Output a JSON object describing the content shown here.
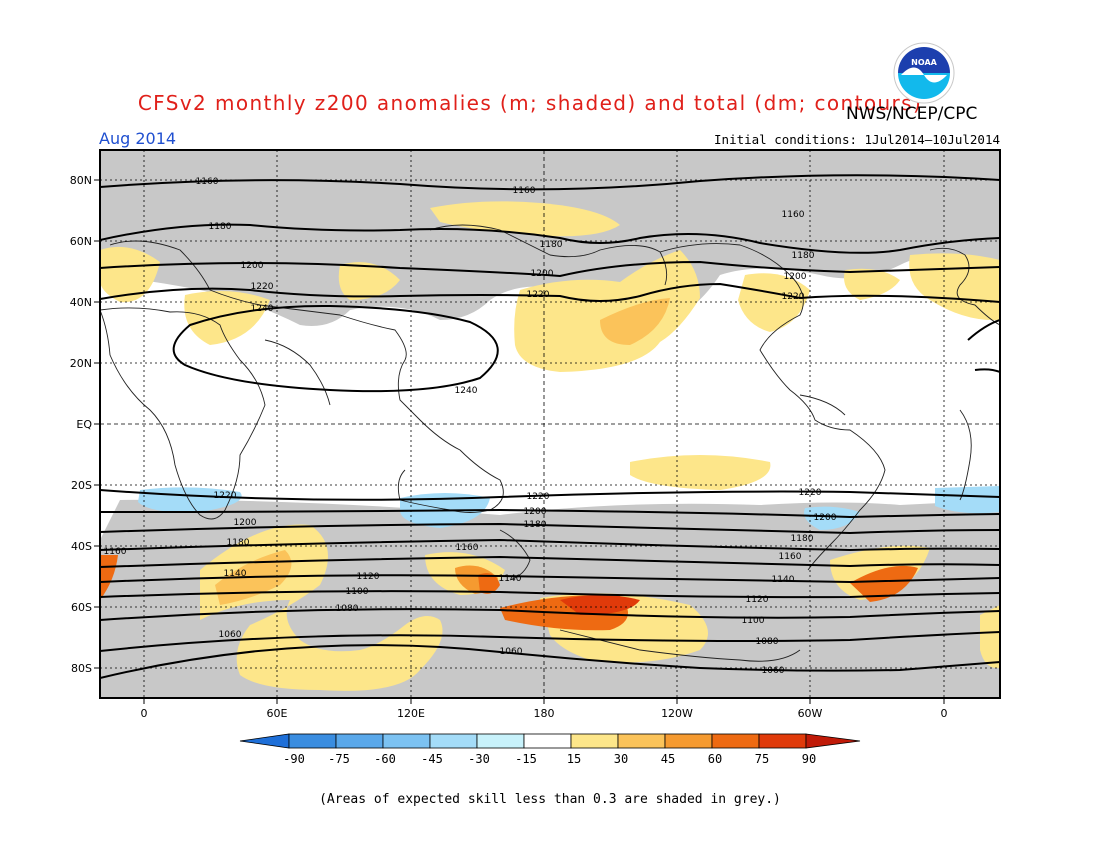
{
  "title": "CFSv2 monthly z200 anomalies (m; shaded) and total (dm; contours)",
  "agency": "NWS/NCEP/CPC",
  "logo_text": "NOAA",
  "month": "Aug 2014",
  "initial_conditions": "Initial conditions: 1Jul2014–10Jul2014",
  "footnote": "(Areas of expected skill less than 0.3 are shaded in grey.)",
  "map": {
    "lat_labels": [
      "80N",
      "60N",
      "40N",
      "20N",
      "EQ",
      "20S",
      "40S",
      "60S",
      "80S"
    ],
    "lon_labels": [
      "0",
      "60E",
      "120E",
      "180",
      "120W",
      "60W",
      "0"
    ],
    "contour_labels": [
      "1060",
      "1080",
      "1100",
      "1120",
      "1140",
      "1160",
      "1180",
      "1200",
      "1220",
      "1240"
    ]
  },
  "colorbar": {
    "labels": [
      "-90",
      "-75",
      "-60",
      "-45",
      "-30",
      "-15",
      "15",
      "30",
      "45",
      "60",
      "75",
      "90"
    ],
    "colors": [
      "#1e6fd8",
      "#3a8de0",
      "#5aa8ea",
      "#7cc2f2",
      "#a4dcf8",
      "#c8f2fb",
      "#ffffff",
      "#fde68a",
      "#fbc35a",
      "#f59a30",
      "#ee6a12",
      "#e03a0a",
      "#c01a08"
    ]
  }
}
